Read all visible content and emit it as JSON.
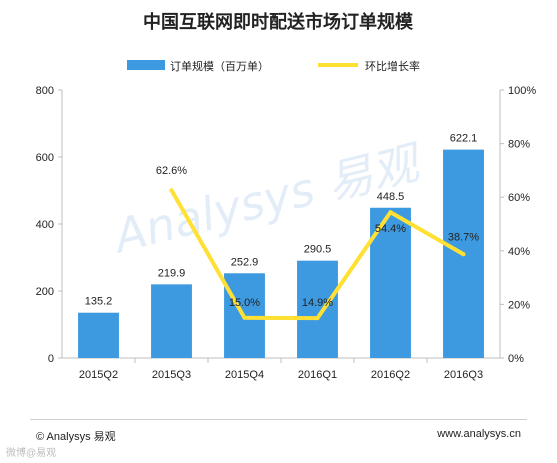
{
  "chart_data": {
    "type": "bar",
    "title": "中国互联网即时配送市场订单规模",
    "categories": [
      "2015Q2",
      "2015Q3",
      "2015Q4",
      "2016Q1",
      "2016Q2",
      "2016Q3"
    ],
    "series": [
      {
        "name": "订单规模（百万单）",
        "type": "bar",
        "axis": "left",
        "values": [
          135.2,
          219.9,
          252.9,
          290.5,
          448.5,
          622.1
        ],
        "labels": [
          "135.2",
          "219.9",
          "252.9",
          "290.5",
          "448.5",
          "622.1"
        ],
        "color": "#3d9ae0"
      },
      {
        "name": "环比增长率",
        "type": "line",
        "axis": "right",
        "values": [
          null,
          62.6,
          15.0,
          14.9,
          54.4,
          38.7
        ],
        "labels": [
          "",
          "62.6%",
          "15.0%",
          "14.9%",
          "54.4%",
          "38.7%"
        ],
        "color": "#ffe033"
      }
    ],
    "y_left": {
      "range": [
        0,
        800
      ],
      "ticks": [
        "0",
        "200",
        "400",
        "600",
        "800"
      ]
    },
    "y_right": {
      "range": [
        0,
        100
      ],
      "unit": "%",
      "ticks": [
        "0%",
        "20%",
        "40%",
        "60%",
        "80%",
        "100%"
      ]
    },
    "legend_position": "top",
    "grid": false,
    "watermark": "Analysys 易观"
  },
  "footer": {
    "left": "© Analysys 易观",
    "right": "www.analysys.cn"
  },
  "corner_mark": "微博@易观"
}
